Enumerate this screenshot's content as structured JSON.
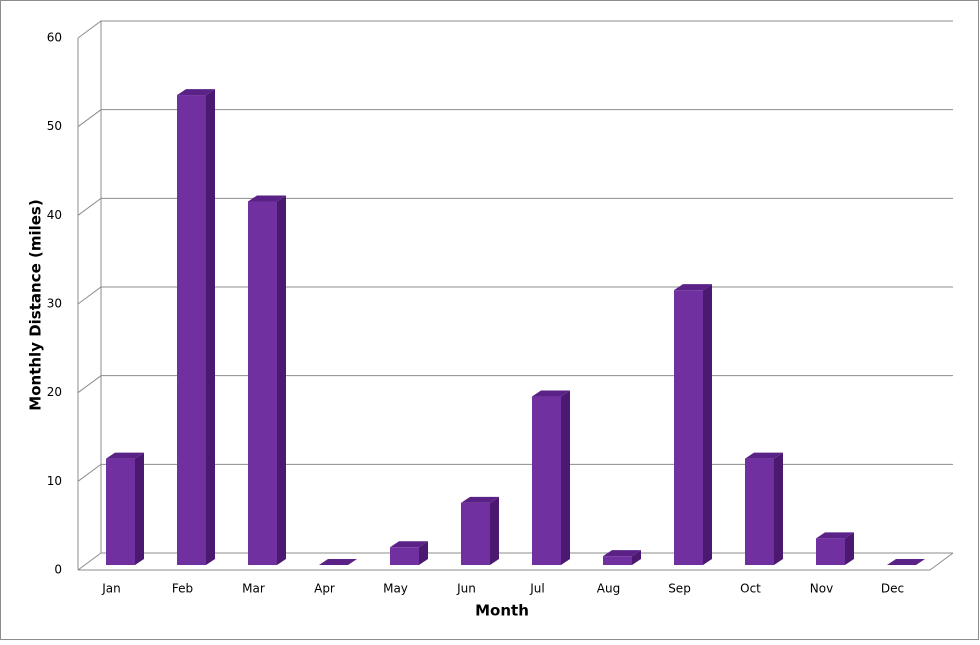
{
  "chart_data": {
    "type": "bar3d",
    "x_label": "Month",
    "y_label": "Monthly Distance (miles)",
    "categories": [
      "Jan",
      "Feb",
      "Mar",
      "Apr",
      "May",
      "Jun",
      "Jul",
      "Aug",
      "Sep",
      "Oct",
      "Nov",
      "Dec"
    ],
    "values": [
      12,
      53,
      41,
      0,
      2,
      7,
      19,
      1,
      31,
      12,
      3,
      0
    ],
    "color": "#7030a0",
    "ylim": [
      0,
      60
    ],
    "yticks": [
      0,
      10,
      20,
      30,
      40,
      50,
      60
    ],
    "grid": true
  }
}
